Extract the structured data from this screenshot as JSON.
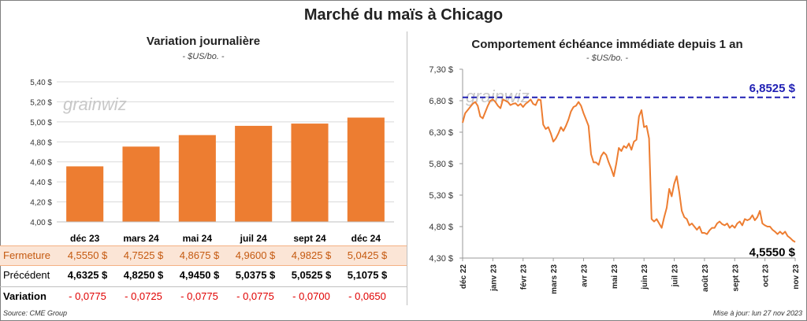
{
  "title": "Marché du maïs à Chicago",
  "left": {
    "title": "Variation journalière",
    "unit": "- $US/bo. -"
  },
  "right": {
    "title": "Comportement échéance immédiate depuis 1 an",
    "unit": "- $US/bo. -"
  },
  "watermark": "grainwiz",
  "table": {
    "rows": [
      {
        "label": "Fermeture",
        "values": [
          "4,5550 $",
          "4,7525 $",
          "4,8675 $",
          "4,9600 $",
          "4,9825 $",
          "5,0425 $"
        ]
      },
      {
        "label": "Précédent",
        "values": [
          "4,6325 $",
          "4,8250 $",
          "4,9450 $",
          "5,0375 $",
          "5,0525 $",
          "5,1075 $"
        ]
      },
      {
        "label": "Variation",
        "values": [
          "- 0,0775",
          "- 0,0725",
          "- 0,0775",
          "- 0,0775",
          "- 0,0700",
          "- 0,0650"
        ]
      }
    ]
  },
  "footer": {
    "source": "Source: CME Group",
    "updated": "Mise à jour: lun 27 nov 2023"
  },
  "chart_data": [
    {
      "type": "bar",
      "title": "Variation journalière",
      "categories": [
        "déc 23",
        "mars 24",
        "mai 24",
        "juil 24",
        "sept 24",
        "déc 24"
      ],
      "values": [
        4.555,
        4.7525,
        4.8675,
        4.96,
        4.9825,
        5.0425
      ],
      "ylim": [
        4.0,
        5.4
      ],
      "yticks": [
        "5,40 $",
        "5,20 $",
        "5,00 $",
        "4,80 $",
        "4,60 $",
        "4,40 $",
        "4,20 $",
        "4,00 $"
      ],
      "color": "#ed7d31",
      "grid": true
    },
    {
      "type": "line",
      "title": "Comportement échéance immédiate depuis 1 an",
      "ylim": [
        4.3,
        7.3
      ],
      "yticks": [
        "7,30 $",
        "6,80 $",
        "6,30 $",
        "5,80 $",
        "5,30 $",
        "4,80 $",
        "4,30 $"
      ],
      "xticks": [
        "déc 22",
        "janv 23",
        "févr 23",
        "mars 23",
        "avr 23",
        "mai 23",
        "juin 23",
        "juil 23",
        "août 23",
        "sept 23",
        "oct 23",
        "nov 23"
      ],
      "color": "#ed7d31",
      "reference_line": {
        "value": 6.8525,
        "label": "6,8525 $",
        "color": "#1f1fb4"
      },
      "last_label": "4,5550 $",
      "series": [
        {
          "values": [
            6.45,
            6.6,
            6.65,
            6.7,
            6.75,
            6.78,
            6.72,
            6.55,
            6.52,
            6.62,
            6.72,
            6.8,
            6.82,
            6.78,
            6.72,
            6.68,
            6.82,
            6.8,
            6.78,
            6.73,
            6.75,
            6.76,
            6.72,
            6.75,
            6.7,
            6.75,
            6.78,
            6.82,
            6.75,
            6.73,
            6.82,
            6.81,
            6.42,
            6.35,
            6.38,
            6.28,
            6.15,
            6.2,
            6.28,
            6.38,
            6.32,
            6.4,
            6.5,
            6.63,
            6.7,
            6.72,
            6.78,
            6.72,
            6.6,
            6.5,
            6.4,
            5.95,
            5.82,
            5.82,
            5.78,
            5.92,
            5.98,
            5.94,
            5.82,
            5.72,
            5.6,
            5.8,
            6.05,
            6.0,
            6.08,
            6.05,
            6.12,
            6.02,
            6.15,
            6.18,
            6.55,
            6.65,
            6.38,
            6.4,
            6.2,
            4.92,
            4.88,
            4.92,
            4.85,
            4.78,
            4.95,
            5.1,
            5.4,
            5.28,
            5.48,
            5.6,
            5.35,
            5.05,
            4.95,
            4.92,
            4.82,
            4.85,
            4.8,
            4.75,
            4.8,
            4.7,
            4.7,
            4.68,
            4.74,
            4.78,
            4.78,
            4.85,
            4.88,
            4.84,
            4.82,
            4.85,
            4.78,
            4.82,
            4.78,
            4.85,
            4.88,
            4.82,
            4.92,
            4.9,
            4.92,
            4.98,
            4.9,
            4.95,
            5.05,
            4.85,
            4.82,
            4.8,
            4.8,
            4.75,
            4.72,
            4.68,
            4.72,
            4.68,
            4.72,
            4.65,
            4.62,
            4.58,
            4.555
          ]
        }
      ]
    }
  ]
}
